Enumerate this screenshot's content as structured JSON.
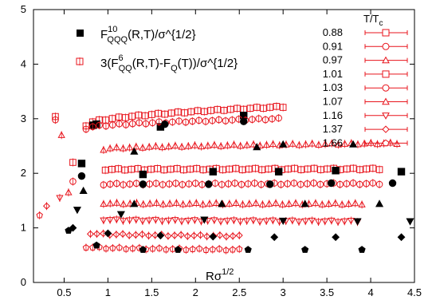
{
  "chart_data": {
    "type": "scatter",
    "xlabel": "Rσ^{1/2}",
    "xlim": [
      0.15,
      4.5
    ],
    "ylim": [
      0,
      5
    ],
    "x_ticks": [
      0.5,
      1,
      1.5,
      2,
      2.5,
      3,
      3.5,
      4,
      4.5
    ],
    "y_ticks": [
      0,
      1,
      2,
      3,
      4,
      5
    ],
    "grid": false,
    "legend": {
      "placement": "top-left",
      "entries": [
        {
          "id": "qqq",
          "marker": "filled-square",
          "base": "F",
          "sup": "10",
          "sub": "QQQ",
          "rest": "(R,T)/σ^{1/2}"
        },
        {
          "id": "qq",
          "marker": "open-square-errorbar",
          "pre": "3(F",
          "sup": "6",
          "sub": "QQ",
          "mid": "(R,T)-F",
          "sub2": "Q",
          "rest": "(T))/σ^{1/2}"
        }
      ]
    },
    "temperature_legend": {
      "title_main": "T/T",
      "title_sub": "c",
      "placement": "top-right",
      "entries": [
        {
          "label": "0.88",
          "marker": "square"
        },
        {
          "label": "0.91",
          "marker": "circle"
        },
        {
          "label": "0.97",
          "marker": "triangle-up"
        },
        {
          "label": "1.01",
          "marker": "square"
        },
        {
          "label": "1.03",
          "marker": "circle"
        },
        {
          "label": "1.07",
          "marker": "triangle-up"
        },
        {
          "label": "1.16",
          "marker": "triangle-down"
        },
        {
          "label": "1.37",
          "marker": "diamond"
        },
        {
          "label": "1.66",
          "marker": "pentagon"
        }
      ]
    },
    "series": [
      {
        "temperature": "0.88",
        "marker": "square",
        "qq_x_range": [
          0.75,
          3.0
        ],
        "qq_y_start": 2.88,
        "qq_y_end": 3.22,
        "qq_x_first": 0.4,
        "qq_y_first": 3.04,
        "qqq": [
          [
            0.83,
            2.88
          ],
          [
            0.87,
            2.9
          ],
          [
            1.6,
            2.85
          ],
          [
            2.55,
            3.06
          ]
        ]
      },
      {
        "temperature": "0.91",
        "marker": "circle",
        "qq_x_range": [
          0.75,
          2.95
        ],
        "qq_y_start": 2.82,
        "qq_y_end": 3.0,
        "qq_x_first": 0.4,
        "qq_y_first": 2.98,
        "qqq": [
          [
            1.65,
            2.9
          ],
          [
            2.55,
            2.95
          ]
        ]
      },
      {
        "temperature": "0.97",
        "marker": "triangle-up",
        "qq_x_range": [
          0.95,
          4.3
        ],
        "qq_y_start": 2.44,
        "qq_y_end": 2.55,
        "qq_x_first": 0.47,
        "qq_y_first": 2.7,
        "qqq": [
          [
            1.3,
            2.4
          ],
          [
            2.7,
            2.48
          ],
          [
            3.0,
            2.53
          ],
          [
            3.8,
            2.53
          ]
        ]
      },
      {
        "temperature": "1.01",
        "marker": "square",
        "qq_x_range": [
          0.97,
          4.1
        ],
        "qq_y_start": 2.07,
        "qq_y_end": 2.08,
        "qq_x_first": 0.6,
        "qq_y_first": 2.2,
        "qqq": [
          [
            0.7,
            2.18
          ],
          [
            1.4,
            1.98
          ],
          [
            2.2,
            2.03
          ],
          [
            2.95,
            2.03
          ],
          [
            3.6,
            2.05
          ],
          [
            4.35,
            2.03
          ]
        ]
      },
      {
        "temperature": "1.03",
        "marker": "circle",
        "qq_x_range": [
          0.95,
          4.1
        ],
        "qq_y_start": 1.8,
        "qq_y_end": 1.81,
        "qq_x_first": 0.6,
        "qq_y_first": 1.85,
        "qqq": [
          [
            0.7,
            1.95
          ],
          [
            1.4,
            1.8
          ],
          [
            2.15,
            1.8
          ],
          [
            2.85,
            1.8
          ],
          [
            3.55,
            1.82
          ],
          [
            4.25,
            1.82
          ]
        ]
      },
      {
        "temperature": "1.07",
        "marker": "triangle-up",
        "qq_x_range": [
          0.95,
          3.9
        ],
        "qq_y_start": 1.45,
        "qq_y_end": 1.44,
        "qq_x_first": 0.55,
        "qq_y_first": 1.65,
        "qqq": [
          [
            0.72,
            1.68
          ],
          [
            1.3,
            1.44
          ],
          [
            2.3,
            1.44
          ],
          [
            3.25,
            1.44
          ],
          [
            4.1,
            1.44
          ]
        ]
      },
      {
        "temperature": "1.16",
        "marker": "triangle-down",
        "qq_x_range": [
          0.95,
          3.85
        ],
        "qq_y_start": 1.15,
        "qq_y_end": 1.12,
        "qq_x_first": 0.45,
        "qq_y_first": 1.55,
        "qqq": [
          [
            0.65,
            1.33
          ],
          [
            1.15,
            1.25
          ],
          [
            2.1,
            1.15
          ],
          [
            3.0,
            1.13
          ],
          [
            3.85,
            1.12
          ],
          [
            4.45,
            1.12
          ]
        ]
      },
      {
        "temperature": "1.37",
        "marker": "diamond",
        "qq_x_range": [
          0.8,
          2.5
        ],
        "qq_y_start": 0.9,
        "qq_y_end": 0.85,
        "qq_x_first": 0.3,
        "qq_y_first": 1.4,
        "qqq": [
          [
            0.6,
            1.0
          ],
          [
            1.0,
            0.9
          ],
          [
            1.6,
            0.86
          ],
          [
            2.2,
            0.84
          ],
          [
            2.9,
            0.83
          ],
          [
            3.6,
            0.83
          ],
          [
            4.35,
            0.83
          ]
        ]
      },
      {
        "temperature": "1.66",
        "marker": "pentagon",
        "qq_x_range": [
          0.75,
          2.5
        ],
        "qq_y_start": 0.65,
        "qq_y_end": 0.6,
        "qq_x_first": 0.22,
        "qq_y_first": 1.23,
        "qqq": [
          [
            0.55,
            0.95
          ],
          [
            0.87,
            0.68
          ],
          [
            1.4,
            0.6
          ],
          [
            1.8,
            0.6
          ],
          [
            2.6,
            0.6
          ],
          [
            3.25,
            0.6
          ],
          [
            3.9,
            0.6
          ]
        ]
      }
    ]
  }
}
